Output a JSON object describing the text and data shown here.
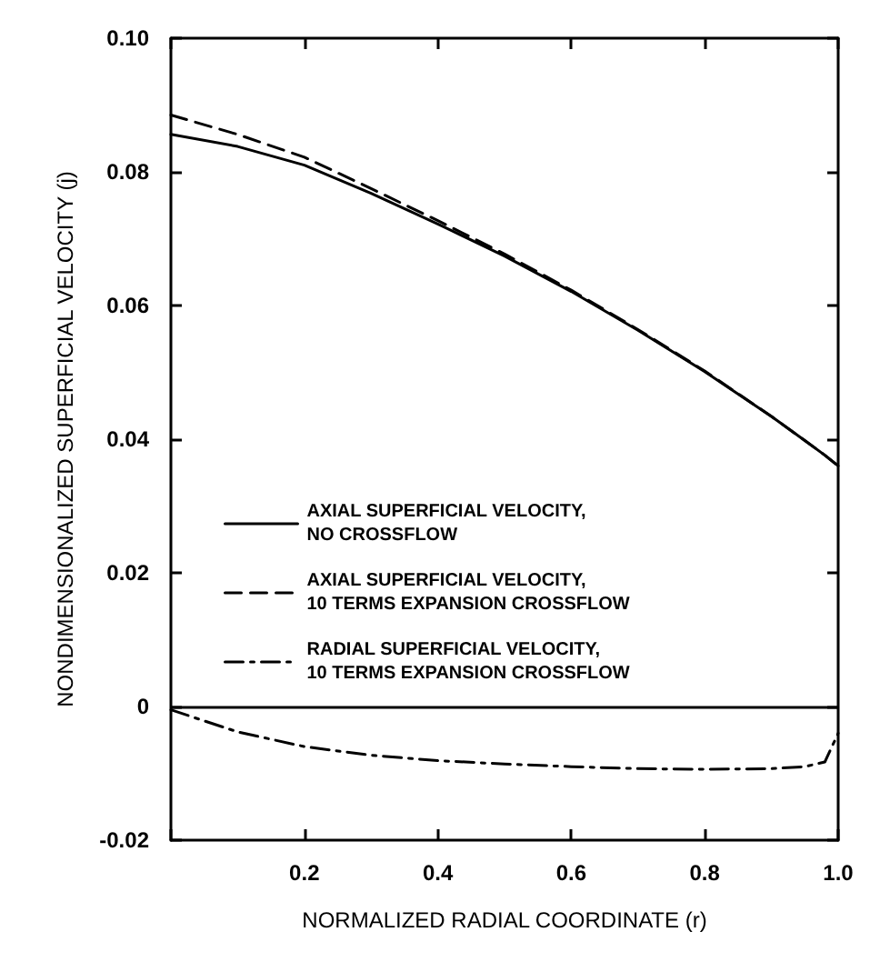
{
  "chart_data": {
    "type": "line",
    "xlabel": "NORMALIZED RADIAL COORDINATE (r)",
    "ylabel": "NONDIMENSIONALIZED SUPERFICIAL VELOCITY (j)",
    "xlim": [
      0,
      1
    ],
    "xticks": [
      {
        "value": 0,
        "label": null
      },
      0.2,
      0.4,
      0.6,
      0.8,
      {
        "value": 1,
        "label": "1.0"
      }
    ],
    "ylim": [
      -0.02,
      0.1
    ],
    "yticks": [
      -0.02,
      0,
      0.02,
      0.04,
      0.06,
      0.08,
      {
        "value": 0.1,
        "label": "0.10"
      }
    ],
    "grid": false,
    "legend": "left",
    "marker": "none",
    "x": [
      0,
      0.1,
      0.2,
      0.3,
      0.4,
      0.5,
      0.6,
      0.7,
      0.8,
      0.9,
      0.95,
      0.98,
      1.0
    ],
    "series": [
      {
        "name": "AXIAL SUPERFICIAL VELOCITY,\nNO CROSSFLOW",
        "color": "#000000",
        "line_style": "solid",
        "values": [
          0.0856,
          0.0838,
          0.081,
          0.0768,
          0.0722,
          0.0674,
          0.0621,
          0.0563,
          0.0501,
          0.0434,
          0.0398,
          0.0376,
          0.036
        ]
      },
      {
        "name": "AXIAL SUPERFICIAL VELOCITY,\n10 TERMS EXPANSION CROSSFLOW",
        "color": "#000000",
        "line_style": "dashed",
        "values": [
          0.0885,
          0.0856,
          0.0822,
          0.0775,
          0.0727,
          0.0677,
          0.0623,
          0.0564,
          0.0502,
          0.0434,
          0.0398,
          0.0376,
          0.036
        ]
      },
      {
        "name": "RADIAL SUPERFICIAL VELOCITY,\n10 TERMS EXPANSION CROSSFLOW",
        "color": "#000000",
        "line_style": "dashdot",
        "values": [
          -0.0005,
          -0.0038,
          -0.006,
          -0.0073,
          -0.0081,
          -0.0086,
          -0.009,
          -0.0093,
          -0.0094,
          -0.0093,
          -0.009,
          -0.0083,
          -0.004
        ]
      }
    ],
    "ref_lines": [
      {
        "axis": "y",
        "value": 0,
        "label": null,
        "color": "#000000",
        "line_style": "solid"
      }
    ]
  }
}
